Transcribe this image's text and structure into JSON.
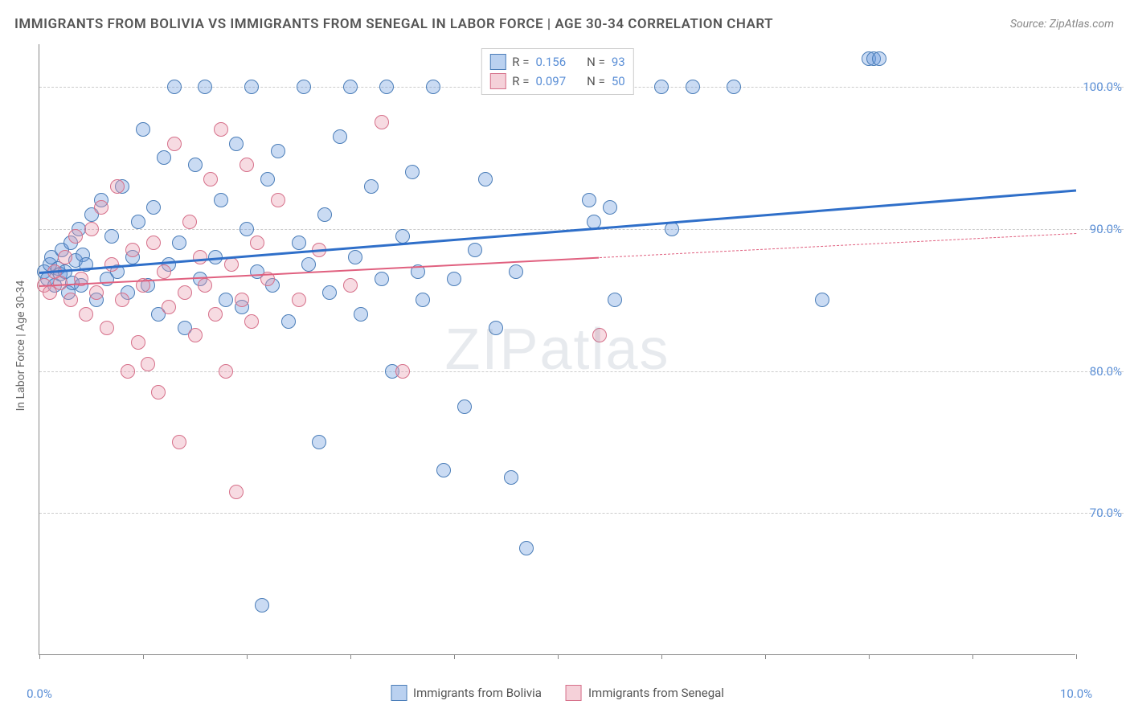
{
  "title": "IMMIGRANTS FROM BOLIVIA VS IMMIGRANTS FROM SENEGAL IN LABOR FORCE | AGE 30-34 CORRELATION CHART",
  "source": "Source: ZipAtlas.com",
  "watermark": "ZIPatlas",
  "y_axis_label": "In Labor Force | Age 30-34",
  "chart": {
    "type": "scatter",
    "xlim": [
      0,
      10
    ],
    "ylim": [
      60,
      103
    ],
    "x_ticks": [
      0,
      1,
      2,
      3,
      4,
      5,
      6,
      7,
      8,
      9,
      10
    ],
    "x_tick_labels": {
      "0": "0.0%",
      "10": "10.0%"
    },
    "y_gridlines": [
      70,
      80,
      90,
      100
    ],
    "y_tick_labels": {
      "70": "70.0%",
      "80": "80.0%",
      "90": "90.0%",
      "100": "100.0%"
    },
    "background_color": "#ffffff",
    "grid_color": "#cccccc",
    "point_radius": 9,
    "point_opacity": 0.55,
    "series": [
      {
        "name": "Immigrants from Bolivia",
        "color": "#6699dd",
        "border": "#4a7db8",
        "fill": "rgba(102,153,221,0.35)",
        "r": "0.156",
        "n": "93",
        "trend": {
          "x1": 0,
          "y1": 87.0,
          "x2": 10,
          "y2": 92.8,
          "color": "#2f6fc9",
          "width": 2.5
        },
        "points": [
          [
            0.05,
            87.0
          ],
          [
            0.08,
            86.5
          ],
          [
            0.1,
            87.5
          ],
          [
            0.12,
            88.0
          ],
          [
            0.15,
            86.0
          ],
          [
            0.18,
            87.2
          ],
          [
            0.2,
            86.8
          ],
          [
            0.22,
            88.5
          ],
          [
            0.25,
            87.0
          ],
          [
            0.28,
            85.5
          ],
          [
            0.3,
            89.0
          ],
          [
            0.32,
            86.2
          ],
          [
            0.35,
            87.8
          ],
          [
            0.38,
            90.0
          ],
          [
            0.4,
            86.0
          ],
          [
            0.42,
            88.2
          ],
          [
            0.45,
            87.5
          ],
          [
            0.5,
            91.0
          ],
          [
            0.55,
            85.0
          ],
          [
            0.6,
            92.0
          ],
          [
            0.65,
            86.5
          ],
          [
            0.7,
            89.5
          ],
          [
            0.75,
            87.0
          ],
          [
            0.8,
            93.0
          ],
          [
            0.85,
            85.5
          ],
          [
            0.9,
            88.0
          ],
          [
            0.95,
            90.5
          ],
          [
            1.0,
            97.0
          ],
          [
            1.05,
            86.0
          ],
          [
            1.1,
            91.5
          ],
          [
            1.15,
            84.0
          ],
          [
            1.2,
            95.0
          ],
          [
            1.25,
            87.5
          ],
          [
            1.3,
            100.0
          ],
          [
            1.35,
            89.0
          ],
          [
            1.4,
            83.0
          ],
          [
            1.5,
            94.5
          ],
          [
            1.55,
            86.5
          ],
          [
            1.6,
            100.0
          ],
          [
            1.7,
            88.0
          ],
          [
            1.75,
            92.0
          ],
          [
            1.8,
            85.0
          ],
          [
            1.9,
            96.0
          ],
          [
            1.95,
            84.5
          ],
          [
            2.0,
            90.0
          ],
          [
            2.05,
            100.0
          ],
          [
            2.1,
            87.0
          ],
          [
            2.15,
            63.5
          ],
          [
            2.2,
            93.5
          ],
          [
            2.25,
            86.0
          ],
          [
            2.3,
            95.5
          ],
          [
            2.4,
            83.5
          ],
          [
            2.5,
            89.0
          ],
          [
            2.55,
            100.0
          ],
          [
            2.6,
            87.5
          ],
          [
            2.7,
            75.0
          ],
          [
            2.75,
            91.0
          ],
          [
            2.8,
            85.5
          ],
          [
            2.9,
            96.5
          ],
          [
            3.0,
            100.0
          ],
          [
            3.05,
            88.0
          ],
          [
            3.1,
            84.0
          ],
          [
            3.2,
            93.0
          ],
          [
            3.3,
            86.5
          ],
          [
            3.35,
            100.0
          ],
          [
            3.4,
            80.0
          ],
          [
            3.5,
            89.5
          ],
          [
            3.6,
            94.0
          ],
          [
            3.65,
            87.0
          ],
          [
            3.7,
            85.0
          ],
          [
            3.8,
            100.0
          ],
          [
            3.9,
            73.0
          ],
          [
            4.0,
            86.5
          ],
          [
            4.1,
            77.5
          ],
          [
            4.2,
            88.5
          ],
          [
            4.3,
            93.5
          ],
          [
            4.4,
            83.0
          ],
          [
            4.5,
            100.0
          ],
          [
            4.55,
            72.5
          ],
          [
            4.6,
            87.0
          ],
          [
            4.7,
            67.5
          ],
          [
            5.3,
            92.0
          ],
          [
            5.35,
            90.5
          ],
          [
            5.5,
            91.5
          ],
          [
            5.55,
            85.0
          ],
          [
            6.0,
            100.0
          ],
          [
            6.1,
            90.0
          ],
          [
            6.3,
            100.0
          ],
          [
            6.7,
            100.0
          ],
          [
            7.55,
            85.0
          ],
          [
            8.0,
            102.0
          ],
          [
            8.05,
            102.0
          ],
          [
            8.1,
            102.0
          ]
        ]
      },
      {
        "name": "Immigrants from Senegal",
        "color": "#e898ab",
        "border": "#d6708a",
        "fill": "rgba(232,152,171,0.35)",
        "r": "0.097",
        "n": "50",
        "trend": {
          "x1": 0,
          "y1": 86.0,
          "x2": 5.4,
          "y2": 88.0,
          "x3": 10,
          "y3": 89.7,
          "color": "#e0607f",
          "width": 2
        },
        "points": [
          [
            0.05,
            86.0
          ],
          [
            0.1,
            85.5
          ],
          [
            0.15,
            87.0
          ],
          [
            0.2,
            86.2
          ],
          [
            0.25,
            88.0
          ],
          [
            0.3,
            85.0
          ],
          [
            0.35,
            89.5
          ],
          [
            0.4,
            86.5
          ],
          [
            0.45,
            84.0
          ],
          [
            0.5,
            90.0
          ],
          [
            0.55,
            85.5
          ],
          [
            0.6,
            91.5
          ],
          [
            0.65,
            83.0
          ],
          [
            0.7,
            87.5
          ],
          [
            0.75,
            93.0
          ],
          [
            0.8,
            85.0
          ],
          [
            0.85,
            80.0
          ],
          [
            0.9,
            88.5
          ],
          [
            0.95,
            82.0
          ],
          [
            1.0,
            86.0
          ],
          [
            1.05,
            80.5
          ],
          [
            1.1,
            89.0
          ],
          [
            1.15,
            78.5
          ],
          [
            1.2,
            87.0
          ],
          [
            1.25,
            84.5
          ],
          [
            1.3,
            96.0
          ],
          [
            1.35,
            75.0
          ],
          [
            1.4,
            85.5
          ],
          [
            1.45,
            90.5
          ],
          [
            1.5,
            82.5
          ],
          [
            1.55,
            88.0
          ],
          [
            1.6,
            86.0
          ],
          [
            1.65,
            93.5
          ],
          [
            1.7,
            84.0
          ],
          [
            1.75,
            97.0
          ],
          [
            1.8,
            80.0
          ],
          [
            1.85,
            87.5
          ],
          [
            1.9,
            71.5
          ],
          [
            1.95,
            85.0
          ],
          [
            2.0,
            94.5
          ],
          [
            2.05,
            83.5
          ],
          [
            2.1,
            89.0
          ],
          [
            2.2,
            86.5
          ],
          [
            2.3,
            92.0
          ],
          [
            2.5,
            85.0
          ],
          [
            2.7,
            88.5
          ],
          [
            3.0,
            86.0
          ],
          [
            3.3,
            97.5
          ],
          [
            3.5,
            80.0
          ],
          [
            5.4,
            82.5
          ]
        ]
      }
    ]
  },
  "legend_top": {
    "r_label": "R  =",
    "n_label": "N  ="
  },
  "legend_bottom": [
    {
      "label": "Immigrants from Bolivia",
      "fill": "rgba(102,153,221,0.45)",
      "border": "#4a7db8"
    },
    {
      "label": "Immigrants from Senegal",
      "fill": "rgba(232,152,171,0.45)",
      "border": "#d6708a"
    }
  ]
}
